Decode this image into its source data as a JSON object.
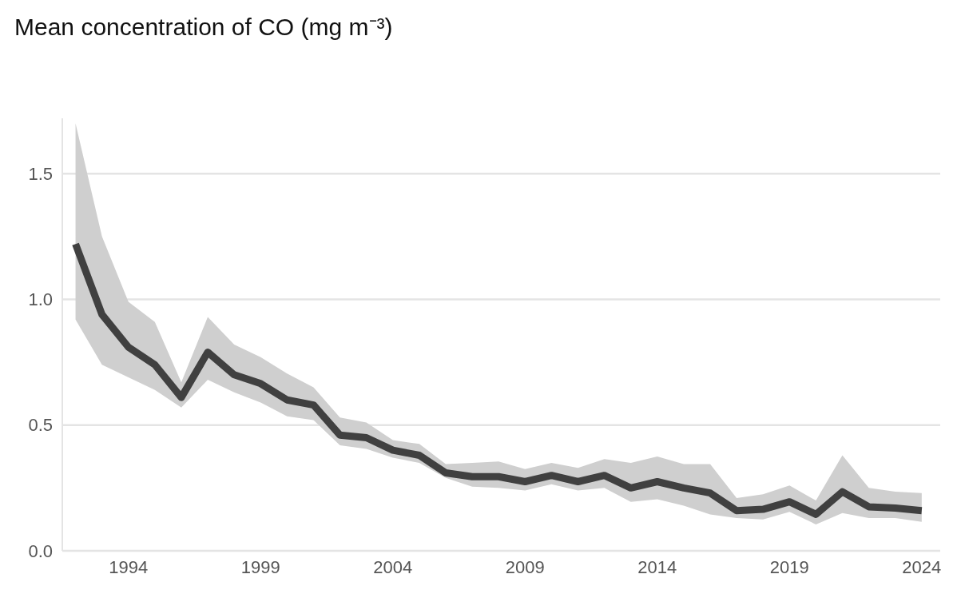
{
  "chart_data": {
    "type": "line",
    "title": "Mean concentration of CO (mg m⁻³)",
    "x": [
      1992,
      1993,
      1994,
      1995,
      1996,
      1997,
      1998,
      1999,
      2000,
      2001,
      2002,
      2003,
      2004,
      2005,
      2006,
      2007,
      2008,
      2009,
      2010,
      2011,
      2012,
      2013,
      2014,
      2015,
      2016,
      2017,
      2018,
      2019,
      2020,
      2021,
      2022,
      2023,
      2024
    ],
    "series": [
      {
        "color": "#404040",
        "values": [
          1.22,
          0.94,
          0.81,
          0.74,
          0.61,
          0.79,
          0.7,
          0.665,
          0.6,
          0.58,
          0.46,
          0.45,
          0.4,
          0.38,
          0.31,
          0.295,
          0.295,
          0.275,
          0.3,
          0.275,
          0.3,
          0.25,
          0.275,
          0.25,
          0.23,
          0.16,
          0.165,
          0.195,
          0.145,
          0.235,
          0.175,
          0.17,
          0.16
        ],
        "lower": [
          0.92,
          0.74,
          0.69,
          0.64,
          0.57,
          0.68,
          0.63,
          0.59,
          0.535,
          0.52,
          0.42,
          0.405,
          0.37,
          0.35,
          0.29,
          0.255,
          0.25,
          0.24,
          0.265,
          0.24,
          0.25,
          0.195,
          0.205,
          0.18,
          0.145,
          0.13,
          0.125,
          0.155,
          0.105,
          0.15,
          0.13,
          0.13,
          0.115
        ],
        "upper": [
          1.7,
          1.25,
          0.99,
          0.91,
          0.67,
          0.93,
          0.82,
          0.77,
          0.705,
          0.65,
          0.53,
          0.51,
          0.44,
          0.425,
          0.345,
          0.35,
          0.355,
          0.325,
          0.35,
          0.33,
          0.365,
          0.35,
          0.375,
          0.345,
          0.345,
          0.21,
          0.225,
          0.26,
          0.2,
          0.38,
          0.25,
          0.235,
          0.23
        ]
      }
    ],
    "xlim": [
      1991.5,
      2024.7
    ],
    "xticks": [
      1994,
      1999,
      2004,
      2009,
      2014,
      2019,
      2024
    ],
    "ylim": [
      0,
      1.72
    ],
    "yticks": [
      {
        "value": 0,
        "label": "0.0"
      },
      {
        "value": 0.5,
        "label": "0.5"
      },
      {
        "value": 1,
        "label": "1.0"
      },
      {
        "value": 1.5,
        "label": "1.5"
      }
    ],
    "grid": "y",
    "marker": "none",
    "line_style": "solid"
  }
}
